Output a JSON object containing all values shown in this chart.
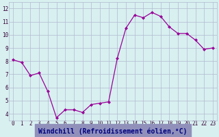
{
  "x": [
    0,
    1,
    2,
    3,
    4,
    5,
    6,
    7,
    8,
    9,
    10,
    11,
    12,
    13,
    14,
    15,
    16,
    17,
    18,
    19,
    20,
    21,
    22,
    23
  ],
  "y": [
    8.1,
    7.9,
    6.9,
    7.1,
    5.7,
    3.7,
    4.3,
    4.3,
    4.1,
    4.7,
    4.8,
    4.9,
    8.2,
    10.5,
    11.5,
    11.3,
    11.7,
    11.4,
    10.6,
    10.1,
    10.1,
    9.6,
    8.9,
    9.0
  ],
  "line_color": "#990099",
  "marker": "D",
  "marker_size": 2,
  "bg_color": "#d8f0f0",
  "grid_color": "#b0b8d0",
  "xlabel": "Windchill (Refroidissement éolien,°C)",
  "xlabel_color": "#000080",
  "xlabel_bg": "#9090bb",
  "ylabel_ticks": [
    4,
    5,
    6,
    7,
    8,
    9,
    10,
    11,
    12
  ],
  "xtick_labels": [
    "0",
    "1",
    "2",
    "3",
    "4",
    "5",
    "6",
    "7",
    "8",
    "9",
    "10",
    "11",
    "12",
    "13",
    "14",
    "15",
    "16",
    "17",
    "18",
    "19",
    "20",
    "21",
    "22",
    "23"
  ],
  "xlim": [
    -0.5,
    23.5
  ],
  "ylim": [
    3.5,
    12.5
  ],
  "tick_fontsize": 5.5,
  "xlabel_fontsize": 7
}
